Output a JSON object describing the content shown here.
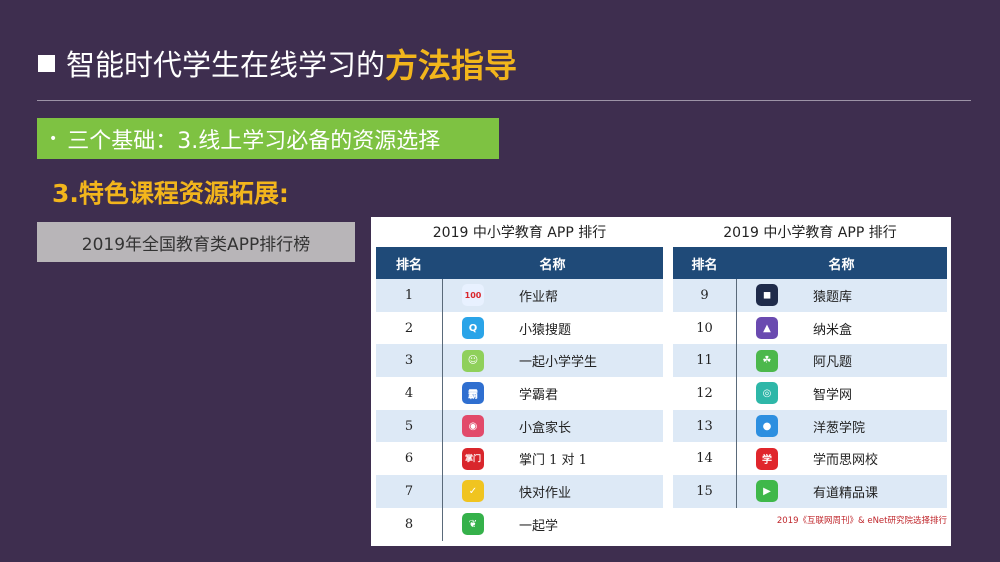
{
  "title": {
    "main": "智能时代学生在线学习的",
    "highlight": "方法指导"
  },
  "section": {
    "bullet": "•",
    "text": "三个基础：3.线上学习必备的资源选择"
  },
  "subheading": "3.特色课程资源拓展:",
  "label_box": "2019年全国教育类APP排行榜",
  "colors": {
    "background": "#3e2e4f",
    "accent_yellow": "#f2b51c",
    "green_bar": "#7ec242",
    "table_header": "#1f4a78",
    "row_alt": "#dde9f6",
    "source_red": "#c0282d"
  },
  "tables": [
    {
      "title": "2019 中小学教育 APP 排行",
      "headers": {
        "rank": "排名",
        "name": "名称"
      },
      "rows": [
        {
          "rank": "1",
          "name": "作业帮",
          "icon": "zuoyebang-icon",
          "icon_text": "100",
          "icon_color": "#e8f1ff"
        },
        {
          "rank": "2",
          "name": "小猿搜题",
          "icon": "xiaoyuan-icon",
          "icon_text": "Q",
          "icon_color": "#2aa4e8"
        },
        {
          "rank": "3",
          "name": "一起小学学生",
          "icon": "yiqi-student-icon",
          "icon_text": "☺",
          "icon_color": "#8fd05b"
        },
        {
          "rank": "4",
          "name": "学霸君",
          "icon": "xuebajun-icon",
          "icon_text": "霸",
          "icon_color": "#2f6fd0"
        },
        {
          "rank": "5",
          "name": "小盒家长",
          "icon": "xiaohe-icon",
          "icon_text": "◉",
          "icon_color": "#e24a6a"
        },
        {
          "rank": "6",
          "name": "掌门 1 对 1",
          "icon": "zhangmen-icon",
          "icon_text": "掌门",
          "icon_color": "#d9262c"
        },
        {
          "rank": "7",
          "name": "快对作业",
          "icon": "kuaidui-icon",
          "icon_text": "✓",
          "icon_color": "#f0c420"
        },
        {
          "rank": "8",
          "name": "一起学",
          "icon": "yiqixue-icon",
          "icon_text": "❦",
          "icon_color": "#35b14a"
        }
      ]
    },
    {
      "title": "2019 中小学教育 APP 排行",
      "headers": {
        "rank": "排名",
        "name": "名称"
      },
      "rows": [
        {
          "rank": "9",
          "name": "猿题库",
          "icon": "yuantiku-icon",
          "icon_text": "◼",
          "icon_color": "#1f2b4a"
        },
        {
          "rank": "10",
          "name": "纳米盒",
          "icon": "namihe-icon",
          "icon_text": "▲",
          "icon_color": "#6a4ab0"
        },
        {
          "rank": "11",
          "name": "阿凡题",
          "icon": "afanti-icon",
          "icon_text": "☘",
          "icon_color": "#4cb84c"
        },
        {
          "rank": "12",
          "name": "智学网",
          "icon": "zhixue-icon",
          "icon_text": "◎",
          "icon_color": "#2eb7a8"
        },
        {
          "rank": "13",
          "name": "洋葱学院",
          "icon": "yangcong-icon",
          "icon_text": "●",
          "icon_color": "#2d8fe0"
        },
        {
          "rank": "14",
          "name": "学而思网校",
          "icon": "xueersi-icon",
          "icon_text": "学",
          "icon_color": "#e0262c"
        },
        {
          "rank": "15",
          "name": "有道精品课",
          "icon": "youdao-icon",
          "icon_text": "▶",
          "icon_color": "#3fb84a"
        }
      ],
      "source": "2019《互联网周刊》& eNet研究院选择排行"
    }
  ]
}
